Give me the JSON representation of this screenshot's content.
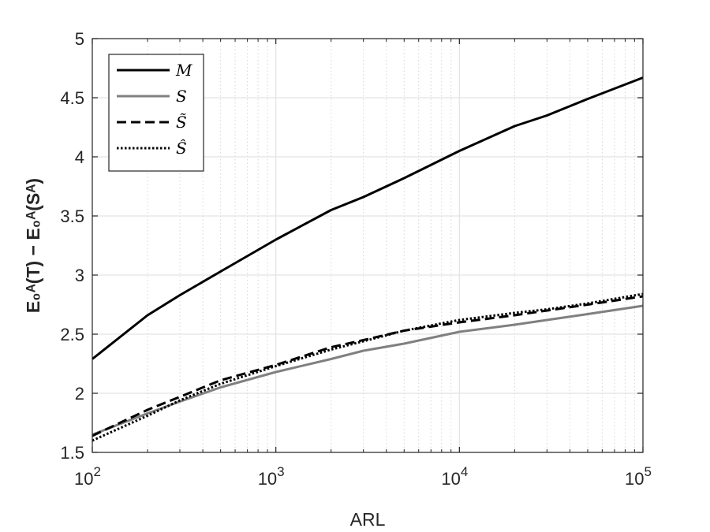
{
  "chart_data": {
    "type": "line",
    "xscale": "log",
    "xlim": [
      100,
      100000
    ],
    "ylim": [
      1.5,
      5
    ],
    "xlabel": "ARL",
    "ylabel": "E₀ᴬ(T) − E₀ᴬ(Sᴬ)",
    "x_ticks": [
      {
        "base": "10",
        "exp": "2",
        "value": 100
      },
      {
        "base": "10",
        "exp": "3",
        "value": 1000
      },
      {
        "base": "10",
        "exp": "4",
        "value": 10000
      },
      {
        "base": "10",
        "exp": "5",
        "value": 100000
      }
    ],
    "y_ticks": [
      "1.5",
      "2",
      "2.5",
      "3",
      "3.5",
      "4",
      "4.5",
      "5"
    ],
    "grid": true,
    "legend_position": "top-left",
    "series": [
      {
        "name": "M",
        "color": "#000000",
        "style": "solid",
        "width": 3,
        "x": [
          100,
          200,
          300,
          500,
          1000,
          2000,
          3000,
          5000,
          10000,
          20000,
          30000,
          50000,
          100000
        ],
        "y": [
          2.29,
          2.66,
          2.83,
          3.03,
          3.3,
          3.55,
          3.66,
          3.82,
          4.05,
          4.26,
          4.35,
          4.49,
          4.67
        ]
      },
      {
        "name": "S",
        "color": "#808080",
        "style": "solid",
        "width": 3,
        "x": [
          100,
          200,
          300,
          500,
          1000,
          2000,
          3000,
          5000,
          10000,
          20000,
          30000,
          50000,
          100000
        ],
        "y": [
          1.65,
          1.83,
          1.93,
          2.05,
          2.18,
          2.29,
          2.36,
          2.42,
          2.52,
          2.58,
          2.62,
          2.67,
          2.74
        ]
      },
      {
        "name": "S̃",
        "color": "#000000",
        "style": "dashed",
        "width": 3,
        "x": [
          100,
          200,
          300,
          500,
          1000,
          2000,
          3000,
          5000,
          10000,
          20000,
          30000,
          50000,
          100000
        ],
        "y": [
          1.64,
          1.86,
          1.97,
          2.11,
          2.24,
          2.39,
          2.45,
          2.53,
          2.6,
          2.66,
          2.7,
          2.75,
          2.82
        ]
      },
      {
        "name": "Ŝ",
        "color": "#000000",
        "style": "dotted",
        "width": 3,
        "x": [
          100,
          200,
          300,
          500,
          1000,
          2000,
          3000,
          5000,
          10000,
          20000,
          30000,
          50000,
          100000
        ],
        "y": [
          1.6,
          1.81,
          1.94,
          2.08,
          2.23,
          2.37,
          2.44,
          2.53,
          2.62,
          2.68,
          2.71,
          2.76,
          2.84
        ]
      }
    ]
  }
}
